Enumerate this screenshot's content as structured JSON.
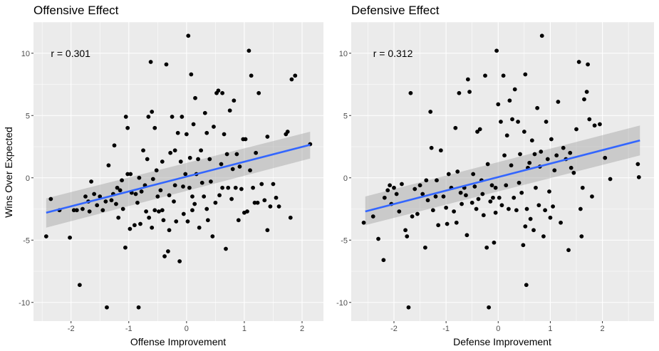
{
  "chart_data": [
    {
      "type": "scatter",
      "title": "Offensive Effect",
      "xlabel": "Offense Improvement",
      "ylabel": "Wins Over Expected",
      "xlim": [
        -2.65,
        2.37
      ],
      "ylim": [
        -11.5,
        12.5
      ],
      "xticks": [
        -2,
        -1,
        0,
        1,
        2
      ],
      "yticks": [
        -10,
        -5,
        0,
        5,
        10
      ],
      "grid": true,
      "annotation": {
        "text": "r = 0.301",
        "x": -2.35,
        "y": 10
      },
      "colors": {
        "panel": "#ebebeb",
        "grid": "#ffffff",
        "point": "#000000",
        "line": "#3366ff",
        "band": "#c8c8c8"
      },
      "fit": {
        "x": [
          -2.43,
          2.14
        ],
        "y": [
          -2.8,
          2.65
        ],
        "se_lower": [
          -4.0,
          1.55
        ],
        "se_upper": [
          -1.65,
          3.7
        ]
      },
      "points": [
        [
          -2.43,
          -4.7
        ],
        [
          -2.35,
          -1.7
        ],
        [
          -2.2,
          -2.6
        ],
        [
          -2.02,
          -4.8
        ],
        [
          -1.95,
          -2.6
        ],
        [
          -1.85,
          -8.6
        ],
        [
          -1.8,
          -2.5
        ],
        [
          -1.75,
          -1.5
        ],
        [
          -1.7,
          -1.9
        ],
        [
          -1.68,
          -2.7
        ],
        [
          -1.65,
          -0.3
        ],
        [
          -1.6,
          -1.3
        ],
        [
          -1.55,
          -2.2
        ],
        [
          -1.5,
          -1.5
        ],
        [
          -1.45,
          -2.6
        ],
        [
          -1.4,
          -1.9
        ],
        [
          -1.38,
          -10.4
        ],
        [
          -1.35,
          1.0
        ],
        [
          -1.3,
          -1.8
        ],
        [
          -1.27,
          -1.3
        ],
        [
          -1.25,
          2.6
        ],
        [
          -1.22,
          -2.1
        ],
        [
          -1.2,
          -0.8
        ],
        [
          -1.18,
          -3.2
        ],
        [
          -1.15,
          -1.0
        ],
        [
          -1.12,
          -0.2
        ],
        [
          -1.1,
          -2.5
        ],
        [
          -1.06,
          -5.6
        ],
        [
          -1.05,
          4.9
        ],
        [
          -1.02,
          0.3
        ],
        [
          -1.02,
          4.0
        ],
        [
          -0.98,
          -4.1
        ],
        [
          -0.97,
          0.3
        ],
        [
          -0.95,
          -1.2
        ],
        [
          -0.9,
          -3.8
        ],
        [
          -0.88,
          -1.3
        ],
        [
          -0.85,
          -2.0
        ],
        [
          -0.83,
          -10.4
        ],
        [
          -0.82,
          0.0
        ],
        [
          -0.8,
          -3.7
        ],
        [
          -0.78,
          -1.1
        ],
        [
          -0.75,
          2.2
        ],
        [
          -0.72,
          -0.6
        ],
        [
          -0.7,
          -2.7
        ],
        [
          -0.68,
          1.5
        ],
        [
          -0.66,
          4.9
        ],
        [
          -0.65,
          -3.2
        ],
        [
          -0.62,
          9.3
        ],
        [
          -0.6,
          5.3
        ],
        [
          -0.58,
          -0.1
        ],
        [
          -0.55,
          4.0
        ],
        [
          -0.55,
          -2.6
        ],
        [
          -0.52,
          0.6
        ],
        [
          -0.5,
          -1.5
        ],
        [
          -0.48,
          -2.7
        ],
        [
          -0.45,
          -1.0
        ],
        [
          -0.42,
          1.3
        ],
        [
          -0.4,
          -3.4
        ],
        [
          -0.38,
          -6.3
        ],
        [
          -0.35,
          9.1
        ],
        [
          -0.32,
          -5.9
        ],
        [
          -0.3,
          -1.4
        ],
        [
          -0.28,
          2.0
        ],
        [
          -0.25,
          4.9
        ],
        [
          -0.22,
          -1.9
        ],
        [
          -0.2,
          -0.6
        ],
        [
          -0.2,
          2.2
        ],
        [
          -0.18,
          -3.5
        ],
        [
          -0.15,
          3.6
        ],
        [
          -0.12,
          -6.7
        ],
        [
          -0.1,
          1.3
        ],
        [
          -0.08,
          4.9
        ],
        [
          -0.06,
          -0.7
        ],
        [
          -0.05,
          -2.9
        ],
        [
          -0.02,
          0.3
        ],
        [
          0.0,
          3.5
        ],
        [
          0.02,
          -3.5
        ],
        [
          0.03,
          11.4
        ],
        [
          0.05,
          -0.8
        ],
        [
          0.06,
          1.6
        ],
        [
          0.08,
          8.3
        ],
        [
          0.1,
          -1.5
        ],
        [
          0.12,
          4.3
        ],
        [
          0.14,
          -2.1
        ],
        [
          0.15,
          6.4
        ],
        [
          0.17,
          0.3
        ],
        [
          0.2,
          1.5
        ],
        [
          0.22,
          -4.0
        ],
        [
          0.25,
          2.2
        ],
        [
          0.27,
          -0.4
        ],
        [
          0.3,
          -1.5
        ],
        [
          0.32,
          5.2
        ],
        [
          0.35,
          3.6
        ],
        [
          0.37,
          -3.4
        ],
        [
          0.4,
          1.5
        ],
        [
          0.42,
          -0.3
        ],
        [
          0.45,
          -4.7
        ],
        [
          0.47,
          4.1
        ],
        [
          0.5,
          -2.0
        ],
        [
          0.52,
          6.8
        ],
        [
          0.55,
          7.0
        ],
        [
          0.57,
          -1.4
        ],
        [
          0.6,
          1.1
        ],
        [
          0.62,
          -0.8
        ],
        [
          0.62,
          6.8
        ],
        [
          0.65,
          3.5
        ],
        [
          0.68,
          -5.7
        ],
        [
          0.7,
          1.9
        ],
        [
          0.72,
          -0.8
        ],
        [
          0.75,
          5.4
        ],
        [
          0.78,
          -1.7
        ],
        [
          0.8,
          0.7
        ],
        [
          0.82,
          6.2
        ],
        [
          0.85,
          -0.8
        ],
        [
          0.87,
          1.9
        ],
        [
          0.9,
          -3.4
        ],
        [
          0.92,
          0.9
        ],
        [
          0.95,
          -0.9
        ],
        [
          0.98,
          3.1
        ],
        [
          1.0,
          -2.8
        ],
        [
          1.02,
          3.1
        ],
        [
          1.05,
          -2.7
        ],
        [
          1.08,
          10.2
        ],
        [
          1.1,
          0.6
        ],
        [
          1.12,
          8.2
        ],
        [
          1.15,
          -0.8
        ],
        [
          1.18,
          -2.0
        ],
        [
          1.2,
          2.0
        ],
        [
          1.23,
          -2.0
        ],
        [
          1.25,
          6.8
        ],
        [
          1.3,
          -0.5
        ],
        [
          1.35,
          -1.8
        ],
        [
          1.4,
          3.3
        ],
        [
          1.45,
          -2.3
        ],
        [
          1.5,
          -0.5
        ],
        [
          1.55,
          -1.6
        ],
        [
          1.6,
          -2.3
        ],
        [
          1.72,
          3.5
        ],
        [
          1.75,
          3.7
        ],
        [
          1.8,
          -3.2
        ],
        [
          1.82,
          7.9
        ],
        [
          1.88,
          8.2
        ],
        [
          2.14,
          2.7
        ],
        [
          -1.9,
          -2.6
        ],
        [
          -0.42,
          -2.6
        ],
        [
          0.35,
          -2.5
        ],
        [
          1.4,
          -4.2
        ],
        [
          -0.6,
          -4.0
        ],
        [
          0.1,
          -2.6
        ],
        [
          -0.3,
          -4.2
        ]
      ]
    },
    {
      "type": "scatter",
      "title": "Defensive Effect",
      "xlabel": "Defense Improvement",
      "ylabel": "",
      "xlim": [
        -2.82,
        2.99
      ],
      "ylim": [
        -11.5,
        12.5
      ],
      "xticks": [
        -2,
        -1,
        0,
        1,
        2
      ],
      "yticks": [
        -10,
        -5,
        0,
        5,
        10
      ],
      "grid": true,
      "annotation": {
        "text": "r = 0.312",
        "x": -2.4,
        "y": 10
      },
      "colors": {
        "panel": "#ebebeb",
        "grid": "#ffffff",
        "point": "#000000",
        "line": "#3366ff",
        "band": "#c8c8c8"
      },
      "fit": {
        "x": [
          -2.55,
          2.72
        ],
        "y": [
          -2.7,
          3.0
        ],
        "se_lower": [
          -3.8,
          1.8
        ],
        "se_upper": [
          -1.5,
          4.2
        ]
      },
      "points": [
        [
          -2.58,
          -3.6
        ],
        [
          -2.4,
          -3.1
        ],
        [
          -2.3,
          -4.9
        ],
        [
          -2.2,
          -6.6
        ],
        [
          -2.18,
          -1.6
        ],
        [
          -2.12,
          -1.0
        ],
        [
          -2.08,
          -0.6
        ],
        [
          -2.05,
          -2.1
        ],
        [
          -2.0,
          -0.8
        ],
        [
          -1.95,
          -1.3
        ],
        [
          -1.9,
          -2.7
        ],
        [
          -1.85,
          -0.5
        ],
        [
          -1.78,
          -4.2
        ],
        [
          -1.75,
          -4.7
        ],
        [
          -1.72,
          -10.4
        ],
        [
          -1.68,
          6.8
        ],
        [
          -1.65,
          -3.1
        ],
        [
          -1.6,
          -0.9
        ],
        [
          -1.55,
          -2.9
        ],
        [
          -1.5,
          -0.6
        ],
        [
          -1.45,
          -1.3
        ],
        [
          -1.4,
          -5.6
        ],
        [
          -1.38,
          -0.2
        ],
        [
          -1.35,
          -1.8
        ],
        [
          -1.3,
          5.3
        ],
        [
          -1.28,
          2.4
        ],
        [
          -1.25,
          -2.6
        ],
        [
          -1.2,
          -1.5
        ],
        [
          -1.18,
          -0.2
        ],
        [
          -1.15,
          -3.8
        ],
        [
          -1.1,
          2.2
        ],
        [
          -1.05,
          -1.5
        ],
        [
          -1.0,
          -2.4
        ],
        [
          -0.98,
          -3.7
        ],
        [
          -0.95,
          0.3
        ],
        [
          -0.9,
          -0.8
        ],
        [
          -0.85,
          -2.7
        ],
        [
          -0.82,
          4.0
        ],
        [
          -0.8,
          -3.6
        ],
        [
          -0.78,
          0.5
        ],
        [
          -0.75,
          6.8
        ],
        [
          -0.72,
          -1.2
        ],
        [
          -0.7,
          -2.1
        ],
        [
          -0.65,
          -0.8
        ],
        [
          -0.62,
          -1.4
        ],
        [
          -0.6,
          -4.6
        ],
        [
          -0.58,
          7.9
        ],
        [
          -0.55,
          6.9
        ],
        [
          -0.5,
          -2.0
        ],
        [
          -0.48,
          0.3
        ],
        [
          -0.45,
          -0.7
        ],
        [
          -0.42,
          -2.5
        ],
        [
          -0.4,
          3.7
        ],
        [
          -0.38,
          -1.7
        ],
        [
          -0.35,
          3.9
        ],
        [
          -0.32,
          -0.2
        ],
        [
          -0.3,
          -1.3
        ],
        [
          -0.28,
          -3.0
        ],
        [
          -0.25,
          8.2
        ],
        [
          -0.22,
          -5.6
        ],
        [
          -0.2,
          1.1
        ],
        [
          -0.18,
          -10.4
        ],
        [
          -0.15,
          -1.9
        ],
        [
          -0.12,
          -0.6
        ],
        [
          -0.1,
          -1.6
        ],
        [
          -0.08,
          -5.2
        ],
        [
          -0.05,
          -0.8
        ],
        [
          -0.03,
          10.2
        ],
        [
          0.0,
          5.9
        ],
        [
          0.02,
          -1.6
        ],
        [
          0.05,
          4.5
        ],
        [
          0.07,
          -2.2
        ],
        [
          0.1,
          8.2
        ],
        [
          0.12,
          1.8
        ],
        [
          0.15,
          -0.6
        ],
        [
          0.17,
          3.4
        ],
        [
          0.2,
          -2.5
        ],
        [
          0.22,
          6.2
        ],
        [
          0.25,
          1.0
        ],
        [
          0.27,
          4.7
        ],
        [
          0.3,
          -1.6
        ],
        [
          0.32,
          7.1
        ],
        [
          0.35,
          -2.6
        ],
        [
          0.38,
          4.5
        ],
        [
          0.4,
          -0.4
        ],
        [
          0.42,
          1.9
        ],
        [
          0.45,
          -1.2
        ],
        [
          0.48,
          -5.4
        ],
        [
          0.5,
          3.7
        ],
        [
          0.52,
          8.3
        ],
        [
          0.54,
          -8.6
        ],
        [
          0.55,
          -2.5
        ],
        [
          0.57,
          0.8
        ],
        [
          0.6,
          1.2
        ],
        [
          0.62,
          -3.3
        ],
        [
          0.65,
          3.0
        ],
        [
          0.68,
          -4.2
        ],
        [
          0.7,
          1.9
        ],
        [
          0.72,
          -0.8
        ],
        [
          0.75,
          5.6
        ],
        [
          0.78,
          -2.2
        ],
        [
          0.8,
          0.9
        ],
        [
          0.82,
          2.1
        ],
        [
          0.84,
          11.4
        ],
        [
          0.87,
          -4.7
        ],
        [
          0.9,
          -2.6
        ],
        [
          0.92,
          4.5
        ],
        [
          0.95,
          1.5
        ],
        [
          0.98,
          -1.1
        ],
        [
          1.0,
          -3.2
        ],
        [
          1.02,
          3.1
        ],
        [
          1.05,
          -2.3
        ],
        [
          1.08,
          0.6
        ],
        [
          1.12,
          1.8
        ],
        [
          1.15,
          6.1
        ],
        [
          1.2,
          -3.6
        ],
        [
          1.25,
          2.4
        ],
        [
          1.3,
          1.5
        ],
        [
          1.35,
          -5.8
        ],
        [
          1.38,
          2.0
        ],
        [
          1.4,
          0.8
        ],
        [
          1.45,
          0.4
        ],
        [
          1.5,
          3.9
        ],
        [
          1.55,
          9.3
        ],
        [
          1.58,
          -2.5
        ],
        [
          1.6,
          -4.7
        ],
        [
          1.62,
          -0.8
        ],
        [
          1.65,
          6.3
        ],
        [
          1.7,
          6.9
        ],
        [
          1.72,
          9.1
        ],
        [
          1.75,
          4.7
        ],
        [
          1.8,
          -1.5
        ],
        [
          1.85,
          4.2
        ],
        [
          1.95,
          4.3
        ],
        [
          2.05,
          1.6
        ],
        [
          2.15,
          -0.1
        ],
        [
          2.68,
          1.1
        ],
        [
          2.7,
          0.05
        ],
        [
          0.52,
          -3.9
        ],
        [
          -0.05,
          -2.8
        ]
      ]
    }
  ]
}
